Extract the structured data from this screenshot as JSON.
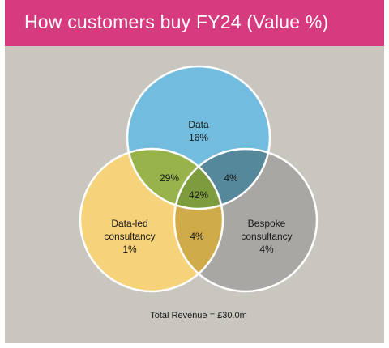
{
  "header": {
    "title": "How customers buy FY24 (Value %)"
  },
  "venn": {
    "sets": [
      {
        "label": "Data",
        "value": "16%",
        "color": "#72bddf"
      },
      {
        "label_lines": [
          "Data-led",
          "consultancy"
        ],
        "value": "1%",
        "color": "#f6d27b"
      },
      {
        "label_lines": [
          "Bespoke",
          "consultancy"
        ],
        "value": "4%",
        "color": "#a9a7a4"
      }
    ],
    "overlaps": {
      "data_dataled": {
        "value": "29%",
        "color": "#97b34a"
      },
      "data_bespoke": {
        "value": "4%",
        "color": "#55889b"
      },
      "dataled_bespoke": {
        "value": "4%",
        "color": "#cfab4a"
      },
      "all": {
        "value": "42%",
        "color": "#7d9c3d"
      }
    },
    "outline_color": "#ffffff"
  },
  "footer": {
    "text": "Total Revenue = £30.0m"
  }
}
